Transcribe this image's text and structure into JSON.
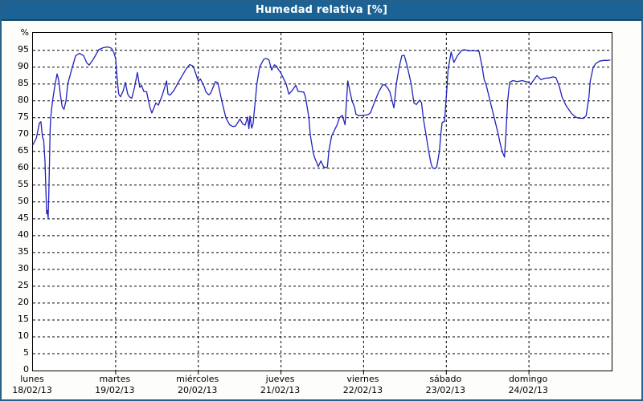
{
  "header": {
    "title": "Humedad relativa [%]"
  },
  "colors": {
    "titlebar_bg": "#1c6294",
    "titlebar_text": "#ffffff",
    "outer_border": "#26618b",
    "plot_bg": "#ffffff",
    "grid_color": "#000000",
    "line_color": "#2121bd"
  },
  "chart_data": {
    "type": "line",
    "title": "Humedad relativa [%]",
    "xlabel": "",
    "ylabel": "%",
    "ylim": [
      0,
      100
    ],
    "xlim_hours": [
      0,
      168
    ],
    "grid": "dashed",
    "legend": "none",
    "yticks": [
      0,
      5,
      10,
      15,
      20,
      25,
      30,
      35,
      40,
      45,
      50,
      55,
      60,
      65,
      70,
      75,
      80,
      85,
      90,
      95
    ],
    "days": [
      {
        "name": "lunes",
        "date": "18/02/13"
      },
      {
        "name": "martes",
        "date": "19/02/13"
      },
      {
        "name": "miércoles",
        "date": "20/02/13"
      },
      {
        "name": "jueves",
        "date": "21/02/13"
      },
      {
        "name": "viernes",
        "date": "22/02/13"
      },
      {
        "name": "sábado",
        "date": "23/02/13"
      },
      {
        "name": "domingo",
        "date": "24/02/13"
      }
    ],
    "series": [
      {
        "name": "Humedad relativa",
        "points": [
          [
            0,
            67
          ],
          [
            1,
            69
          ],
          [
            1.9,
            73.5
          ],
          [
            2.3,
            73.8
          ],
          [
            2.8,
            69
          ],
          [
            3.1,
            68.5
          ],
          [
            3.5,
            62
          ],
          [
            3.8,
            52
          ],
          [
            4,
            46.5
          ],
          [
            4.2,
            47.5
          ],
          [
            4.4,
            45.2
          ],
          [
            4.6,
            52
          ],
          [
            4.8,
            62
          ],
          [
            5,
            72
          ],
          [
            5.2,
            75.5
          ],
          [
            5.7,
            80
          ],
          [
            6.2,
            83.5
          ],
          [
            7,
            88
          ],
          [
            7.5,
            86
          ],
          [
            8,
            81.5
          ],
          [
            8.5,
            78.2
          ],
          [
            9,
            77.5
          ],
          [
            9.6,
            80
          ],
          [
            10.1,
            85
          ],
          [
            11.3,
            89.5
          ],
          [
            12.4,
            93.4
          ],
          [
            13.5,
            94.1
          ],
          [
            14.7,
            93.4
          ],
          [
            15.6,
            91.3
          ],
          [
            16.3,
            90.6
          ],
          [
            17.5,
            92.3
          ],
          [
            19.1,
            95.2
          ],
          [
            20.5,
            95.8
          ],
          [
            21.7,
            96
          ],
          [
            22.8,
            95.6
          ],
          [
            23.5,
            94.3
          ],
          [
            24,
            92.5
          ],
          [
            24.4,
            87
          ],
          [
            24.9,
            82
          ],
          [
            25.4,
            81.2
          ],
          [
            26.2,
            83
          ],
          [
            26.8,
            85.5
          ],
          [
            27.5,
            82
          ],
          [
            28,
            81.2
          ],
          [
            28.7,
            80.8
          ],
          [
            29.5,
            84
          ],
          [
            30.3,
            88.4
          ],
          [
            31,
            84
          ],
          [
            31.5,
            84.6
          ],
          [
            32.2,
            82.8
          ],
          [
            33,
            82.7
          ],
          [
            33.9,
            78.3
          ],
          [
            34.5,
            76.4
          ],
          [
            35.7,
            79.4
          ],
          [
            36.4,
            78.7
          ],
          [
            37.5,
            81.5
          ],
          [
            38.4,
            84.6
          ],
          [
            38.8,
            85.9
          ],
          [
            39.2,
            82
          ],
          [
            39.8,
            81.7
          ],
          [
            41,
            83.2
          ],
          [
            42.2,
            85.5
          ],
          [
            43.4,
            87.6
          ],
          [
            44.5,
            89.5
          ],
          [
            45.5,
            90.8
          ],
          [
            46.5,
            90.3
          ],
          [
            47.3,
            88
          ],
          [
            48,
            85.8
          ],
          [
            48.6,
            86.5
          ],
          [
            49.8,
            84
          ],
          [
            50.2,
            82.7
          ],
          [
            51,
            81.8
          ],
          [
            51.6,
            82.3
          ],
          [
            53,
            85.7
          ],
          [
            53.7,
            85.4
          ],
          [
            54.8,
            80
          ],
          [
            56,
            75
          ],
          [
            57.1,
            72.9
          ],
          [
            58,
            72.4
          ],
          [
            58.8,
            72.5
          ],
          [
            60.1,
            74.6
          ],
          [
            60.9,
            73.1
          ],
          [
            61.6,
            72.8
          ],
          [
            62.3,
            75.2
          ],
          [
            62.7,
            71.7
          ],
          [
            63,
            75.5
          ],
          [
            63.5,
            71.9
          ],
          [
            63.9,
            73.2
          ],
          [
            65,
            85
          ],
          [
            65.8,
            90
          ],
          [
            67,
            92.3
          ],
          [
            67.7,
            92.6
          ],
          [
            68.5,
            92.2
          ],
          [
            69.3,
            89.1
          ],
          [
            70.1,
            90.7
          ],
          [
            70.7,
            90.3
          ],
          [
            71.2,
            89.4
          ],
          [
            72,
            88.2
          ],
          [
            73.5,
            85
          ],
          [
            74.3,
            82
          ],
          [
            75.2,
            83
          ],
          [
            76.3,
            84.6
          ],
          [
            77,
            82.8
          ],
          [
            78.6,
            82.6
          ],
          [
            79,
            81.5
          ],
          [
            79.3,
            80
          ],
          [
            80.1,
            75
          ],
          [
            80.5,
            70
          ],
          [
            81.3,
            65
          ],
          [
            81.7,
            63.3
          ],
          [
            82.4,
            61.7
          ],
          [
            82.8,
            60.5
          ],
          [
            83.6,
            62.2
          ],
          [
            84.4,
            60.4
          ],
          [
            85.2,
            60.2
          ],
          [
            85.5,
            60.5
          ],
          [
            85.9,
            65
          ],
          [
            86.7,
            69.6
          ],
          [
            87.1,
            70.4
          ],
          [
            88.3,
            72.9
          ],
          [
            89,
            75
          ],
          [
            89.8,
            75.7
          ],
          [
            90.6,
            72.9
          ],
          [
            91.4,
            85.9
          ],
          [
            92.6,
            80
          ],
          [
            93.3,
            78.3
          ],
          [
            93.8,
            76
          ],
          [
            94.5,
            75.6
          ],
          [
            95.5,
            75.7
          ],
          [
            96.8,
            75.8
          ],
          [
            97.4,
            76
          ],
          [
            98,
            76.5
          ],
          [
            99.3,
            80
          ],
          [
            100.4,
            82.7
          ],
          [
            101.5,
            84.7
          ],
          [
            102.1,
            84.8
          ],
          [
            103,
            83.8
          ],
          [
            103.6,
            82.7
          ],
          [
            104.8,
            77.9
          ],
          [
            105.5,
            85
          ],
          [
            106.3,
            90
          ],
          [
            107.1,
            93.4
          ],
          [
            107.8,
            93.5
          ],
          [
            108.7,
            90
          ],
          [
            109.8,
            85
          ],
          [
            110.6,
            79.4
          ],
          [
            111.3,
            78.9
          ],
          [
            112.2,
            80.2
          ],
          [
            112.8,
            79.5
          ],
          [
            113.3,
            75
          ],
          [
            114.1,
            70
          ],
          [
            114.9,
            65
          ],
          [
            115.5,
            61.7
          ],
          [
            116,
            60.1
          ],
          [
            116.7,
            59.9
          ],
          [
            117.2,
            60.3
          ],
          [
            118,
            65
          ],
          [
            118.4,
            70
          ],
          [
            118.8,
            73.6
          ],
          [
            119.5,
            73.9
          ],
          [
            119.9,
            80
          ],
          [
            120.2,
            84
          ],
          [
            120.5,
            89
          ],
          [
            121.4,
            94.5
          ],
          [
            122.2,
            91.4
          ],
          [
            123.3,
            93.5
          ],
          [
            124.5,
            95
          ],
          [
            125.3,
            95.2
          ],
          [
            126.5,
            94.8
          ],
          [
            127.5,
            94.9
          ],
          [
            128.8,
            94.8
          ],
          [
            129.5,
            94.7
          ],
          [
            130.4,
            90
          ],
          [
            131,
            86.3
          ],
          [
            131.5,
            85
          ],
          [
            132.7,
            80
          ],
          [
            133.9,
            75
          ],
          [
            135.1,
            70
          ],
          [
            135.5,
            68
          ],
          [
            136.2,
            65
          ],
          [
            136.9,
            63.3
          ],
          [
            137.3,
            70
          ],
          [
            137.8,
            80
          ],
          [
            138.4,
            85.5
          ],
          [
            139.3,
            86
          ],
          [
            140.6,
            85.7
          ],
          [
            142,
            86
          ],
          [
            143.5,
            85.6
          ],
          [
            144,
            85.5
          ],
          [
            144.4,
            84.8
          ],
          [
            146.3,
            87.5
          ],
          [
            147.5,
            86.3
          ],
          [
            148.6,
            86.7
          ],
          [
            149.8,
            86.8
          ],
          [
            151,
            87.1
          ],
          [
            151.8,
            86.9
          ],
          [
            152.8,
            84.3
          ],
          [
            153.6,
            81.1
          ],
          [
            154.7,
            78.7
          ],
          [
            156.3,
            76.3
          ],
          [
            157.5,
            75.2
          ],
          [
            158.3,
            74.9
          ],
          [
            159.8,
            74.8
          ],
          [
            160.6,
            75.6
          ],
          [
            161.4,
            81.1
          ],
          [
            161.8,
            85.9
          ],
          [
            162.6,
            89.8
          ],
          [
            163.3,
            91
          ],
          [
            164.5,
            91.8
          ],
          [
            165.6,
            92
          ],
          [
            166.8,
            92
          ],
          [
            167.5,
            92.1
          ]
        ]
      }
    ]
  }
}
